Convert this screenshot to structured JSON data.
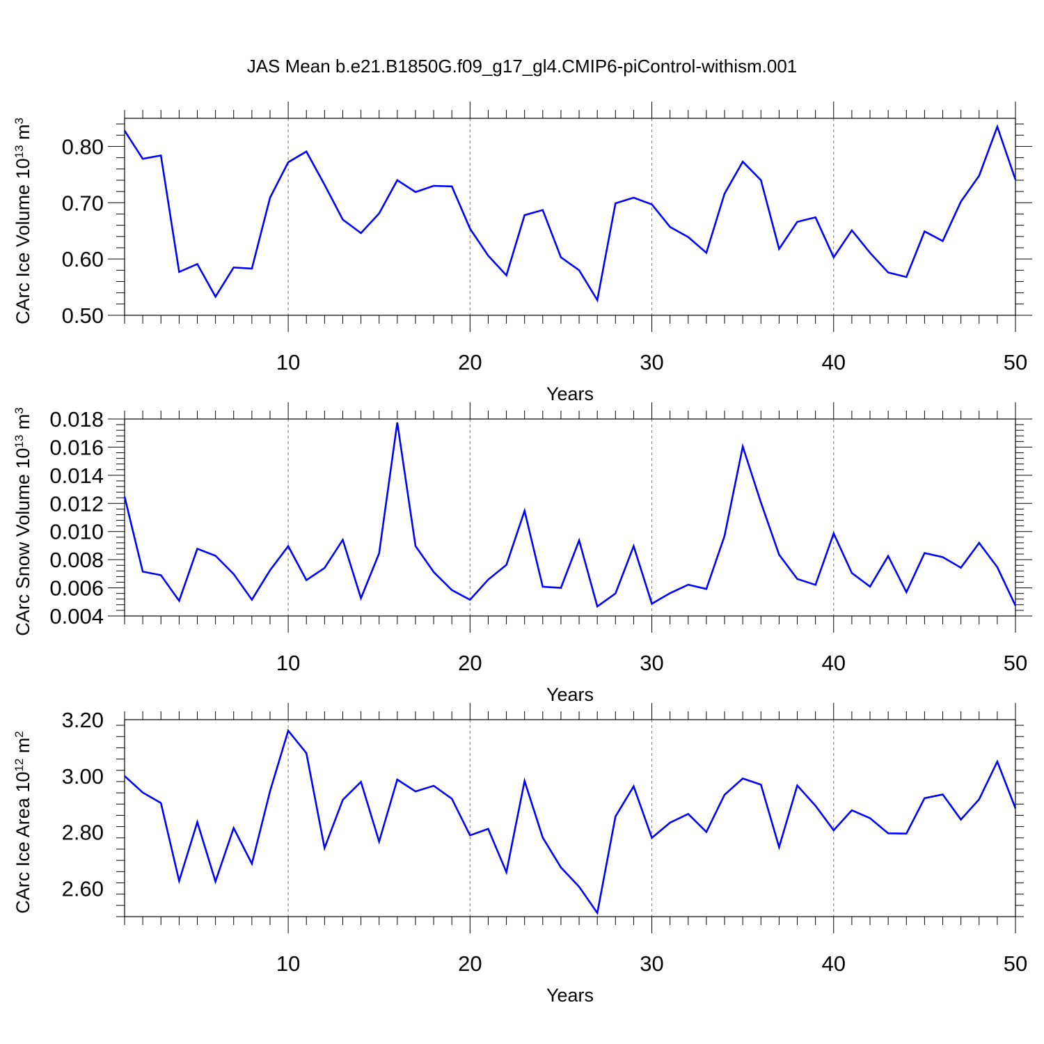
{
  "title": "JAS Mean b.e21.B1850G.f09_g17_gl4.CMIP6-piControl-withism.001",
  "colors": {
    "line": "#0000ff",
    "axis": "#000000",
    "grid": "#777777"
  },
  "chart_data": [
    {
      "type": "line",
      "xlabel": "Years",
      "ylabel": {
        "prefix": "CArc Ice Volume 10",
        "exp": "13",
        "unit": " m",
        "unit_exp": "3"
      },
      "xlim": [
        1,
        50
      ],
      "ylim": [
        0.5,
        0.85
      ],
      "xticks": [
        10,
        20,
        30,
        40,
        50
      ],
      "xtick_labels": [
        "10",
        "20",
        "30",
        "40",
        "50"
      ],
      "yticks": [
        0.5,
        0.6,
        0.7,
        0.8
      ],
      "ytick_labels": [
        "0.50",
        "0.60",
        "0.70",
        "0.80"
      ],
      "grid": "vertical dashed at major x ticks",
      "x": [
        1,
        2,
        3,
        4,
        5,
        6,
        7,
        8,
        9,
        10,
        11,
        12,
        13,
        14,
        15,
        16,
        17,
        18,
        19,
        20,
        21,
        22,
        23,
        24,
        25,
        26,
        27,
        28,
        29,
        30,
        31,
        32,
        33,
        34,
        35,
        36,
        37,
        38,
        39,
        40,
        41,
        42,
        43,
        44,
        45,
        46,
        47,
        48,
        49,
        50
      ],
      "values": [
        0.828,
        0.778,
        0.784,
        0.577,
        0.591,
        0.533,
        0.585,
        0.583,
        0.709,
        0.772,
        0.791,
        0.732,
        0.67,
        0.646,
        0.681,
        0.74,
        0.719,
        0.73,
        0.729,
        0.654,
        0.606,
        0.571,
        0.678,
        0.687,
        0.603,
        0.58,
        0.527,
        0.699,
        0.709,
        0.697,
        0.657,
        0.639,
        0.611,
        0.716,
        0.773,
        0.74,
        0.618,
        0.666,
        0.674,
        0.603,
        0.651,
        0.611,
        0.576,
        0.568,
        0.649,
        0.632,
        0.702,
        0.748,
        0.835,
        0.741
      ]
    },
    {
      "type": "line",
      "xlabel": "Years",
      "ylabel": {
        "prefix": "CArc Snow Volume 10",
        "exp": "13",
        "unit": " m",
        "unit_exp": "3"
      },
      "xlim": [
        1,
        50
      ],
      "ylim": [
        0.004,
        0.018
      ],
      "xticks": [
        10,
        20,
        30,
        40,
        50
      ],
      "xtick_labels": [
        "10",
        "20",
        "30",
        "40",
        "50"
      ],
      "yticks": [
        0.004,
        0.006,
        0.008,
        0.01,
        0.012,
        0.014,
        0.016,
        0.018
      ],
      "ytick_labels": [
        "0.004",
        "0.006",
        "0.008",
        "0.010",
        "0.012",
        "0.014",
        "0.016",
        "0.018"
      ],
      "grid": "vertical dashed at major x ticks",
      "x": [
        1,
        2,
        3,
        4,
        5,
        6,
        7,
        8,
        9,
        10,
        11,
        12,
        13,
        14,
        15,
        16,
        17,
        18,
        19,
        20,
        21,
        22,
        23,
        24,
        25,
        26,
        27,
        28,
        29,
        30,
        31,
        32,
        33,
        34,
        35,
        36,
        37,
        38,
        39,
        40,
        41,
        42,
        43,
        44,
        45,
        46,
        47,
        48,
        49,
        50
      ],
      "values": [
        0.01248,
        0.00715,
        0.0069,
        0.00508,
        0.00878,
        0.00828,
        0.00698,
        0.00516,
        0.00725,
        0.00896,
        0.00655,
        0.00741,
        0.00941,
        0.00526,
        0.00845,
        0.01775,
        0.00897,
        0.00712,
        0.00584,
        0.00515,
        0.00658,
        0.00763,
        0.01147,
        0.00608,
        0.006,
        0.00937,
        0.00468,
        0.0056,
        0.00896,
        0.00487,
        0.00562,
        0.00622,
        0.00592,
        0.00969,
        0.01604,
        0.01206,
        0.00836,
        0.00663,
        0.00621,
        0.00986,
        0.00705,
        0.00609,
        0.00826,
        0.00569,
        0.00847,
        0.00818,
        0.00743,
        0.00919,
        0.00747,
        0.00473
      ]
    },
    {
      "type": "line",
      "xlabel": "Years",
      "ylabel": {
        "prefix": "CArc Ice Area 10",
        "exp": "12",
        "unit": " m",
        "unit_exp": "2"
      },
      "xlim": [
        1,
        50
      ],
      "ylim": [
        2.5,
        3.2
      ],
      "xticks": [
        10,
        20,
        30,
        40,
        50
      ],
      "xtick_labels": [
        "10",
        "20",
        "30",
        "40",
        "50"
      ],
      "yticks": [
        2.6,
        2.8,
        3.0,
        3.2
      ],
      "ytick_labels": [
        "2.60",
        "2.80",
        "3.00",
        "3.20"
      ],
      "grid": "vertical dashed at major x ticks",
      "x": [
        1,
        2,
        3,
        4,
        5,
        6,
        7,
        8,
        9,
        10,
        11,
        12,
        13,
        14,
        15,
        16,
        17,
        18,
        19,
        20,
        21,
        22,
        23,
        24,
        25,
        26,
        27,
        28,
        29,
        30,
        31,
        32,
        33,
        34,
        35,
        36,
        37,
        38,
        39,
        40,
        41,
        42,
        43,
        44,
        45,
        46,
        47,
        48,
        49,
        50
      ],
      "values": [
        3.0,
        2.941,
        2.904,
        2.627,
        2.836,
        2.625,
        2.815,
        2.688,
        2.946,
        3.161,
        3.081,
        2.744,
        2.915,
        2.979,
        2.767,
        2.987,
        2.945,
        2.965,
        2.919,
        2.789,
        2.812,
        2.658,
        2.982,
        2.781,
        2.675,
        2.606,
        2.513,
        2.856,
        2.963,
        2.78,
        2.834,
        2.865,
        2.801,
        2.933,
        2.991,
        2.969,
        2.747,
        2.966,
        2.894,
        2.807,
        2.878,
        2.85,
        2.796,
        2.795,
        2.921,
        2.934,
        2.845,
        2.917,
        3.051,
        2.885
      ]
    }
  ]
}
